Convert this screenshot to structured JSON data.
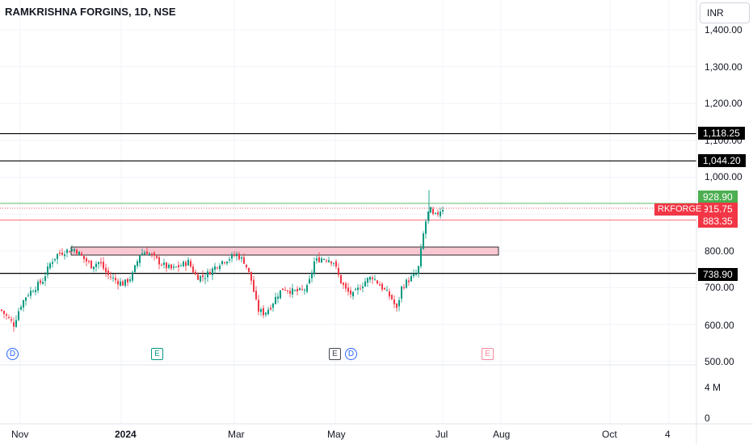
{
  "header": {
    "title": "RAMKRISHNA FORGINS, 1D, NSE",
    "currency": "INR"
  },
  "colors": {
    "up": "#089981",
    "down": "#f23645",
    "level_line": "#000000",
    "zone_fill": "#f8c8d2",
    "last_price": "#f23645",
    "high_price": "#4caf50"
  },
  "price_axis": {
    "ticks": [
      "1,400.00",
      "1,300.00",
      "1,200.00",
      "1,100.00",
      "1,000.00",
      "800.00",
      "700.00",
      "600.00",
      "500.00"
    ]
  },
  "volume_axis": {
    "ticks": [
      "4 M",
      "0"
    ]
  },
  "time_axis": {
    "ticks": [
      "Nov",
      "2024",
      "Mar",
      "May",
      "Jul",
      "Aug",
      "Oct",
      "4"
    ]
  },
  "price_tags": {
    "level_1": "1,118.25",
    "level_2": "1,044.20",
    "day_high": "928.90",
    "last": "915.75",
    "ticker": "RKFORGE",
    "day_low": "883.35",
    "level_3": "738.90"
  },
  "events": {
    "dividend": "D",
    "earnings": "E"
  },
  "chart_data": {
    "type": "candlestick",
    "title": "RAMKRISHNA FORGINS, 1D, NSE",
    "yrange": [
      500,
      1450
    ],
    "horizontal_levels": [
      1118.25,
      1044.2,
      738.9
    ],
    "day_high": 928.9,
    "last": 915.75,
    "day_low": 883.35,
    "zone": {
      "from": "late Nov",
      "to": "Aug",
      "low": 790,
      "high": 812
    },
    "events": [
      {
        "date": "Nov",
        "type": "dividend"
      },
      {
        "date": "Jan",
        "type": "earnings"
      },
      {
        "date": "May",
        "type": "earnings"
      },
      {
        "date": "May",
        "type": "dividend"
      },
      {
        "date": "late Jul",
        "type": "earnings (upcoming)"
      }
    ],
    "close_path": [
      [
        0,
        640
      ],
      [
        8,
        620
      ],
      [
        16,
        600
      ],
      [
        24,
        650
      ],
      [
        32,
        680
      ],
      [
        42,
        700
      ],
      [
        52,
        720
      ],
      [
        62,
        770
      ],
      [
        70,
        790
      ],
      [
        80,
        800
      ],
      [
        92,
        805
      ],
      [
        102,
        780
      ],
      [
        112,
        760
      ],
      [
        122,
        770
      ],
      [
        132,
        735
      ],
      [
        142,
        720
      ],
      [
        152,
        710
      ],
      [
        162,
        730
      ],
      [
        172,
        790
      ],
      [
        180,
        800
      ],
      [
        190,
        780
      ],
      [
        202,
        760
      ],
      [
        212,
        750
      ],
      [
        222,
        760
      ],
      [
        232,
        770
      ],
      [
        242,
        730
      ],
      [
        252,
        730
      ],
      [
        262,
        750
      ],
      [
        272,
        770
      ],
      [
        282,
        780
      ],
      [
        292,
        790
      ],
      [
        302,
        770
      ],
      [
        310,
        720
      ],
      [
        318,
        640
      ],
      [
        326,
        630
      ],
      [
        334,
        650
      ],
      [
        342,
        680
      ],
      [
        350,
        700
      ],
      [
        360,
        690
      ],
      [
        370,
        690
      ],
      [
        380,
        700
      ],
      [
        388,
        770
      ],
      [
        396,
        780
      ],
      [
        404,
        780
      ],
      [
        412,
        770
      ],
      [
        420,
        720
      ],
      [
        428,
        690
      ],
      [
        436,
        680
      ],
      [
        444,
        700
      ],
      [
        452,
        720
      ],
      [
        460,
        730
      ],
      [
        468,
        710
      ],
      [
        476,
        690
      ],
      [
        484,
        670
      ],
      [
        490,
        640
      ],
      [
        496,
        700
      ],
      [
        504,
        720
      ],
      [
        510,
        730
      ],
      [
        516,
        740
      ],
      [
        520,
        800
      ],
      [
        524,
        860
      ],
      [
        528,
        900
      ],
      [
        532,
        910
      ],
      [
        536,
        890
      ],
      [
        540,
        900
      ],
      [
        546,
        915.75
      ]
    ]
  }
}
